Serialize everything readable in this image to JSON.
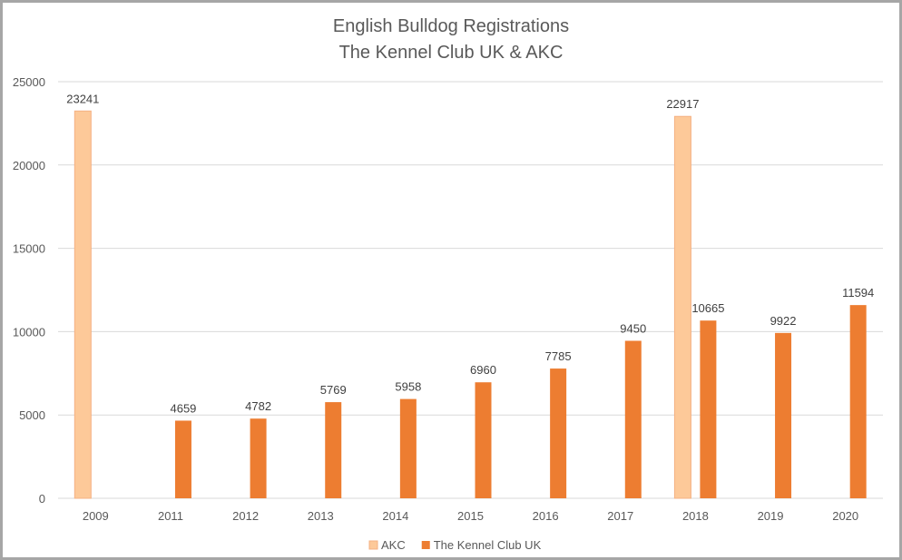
{
  "chart_data": {
    "type": "bar",
    "title": "English Bulldog Registrations",
    "subtitle": "The Kennel Club UK & AKC",
    "categories": [
      "2009",
      "2011",
      "2012",
      "2013",
      "2014",
      "2015",
      "2016",
      "2017",
      "2018",
      "2019",
      "2020"
    ],
    "series": [
      {
        "name": "AKC",
        "color": "#fdc999",
        "values": [
          23241,
          null,
          null,
          null,
          null,
          null,
          null,
          null,
          22917,
          null,
          null
        ]
      },
      {
        "name": "The Kennel Club UK",
        "color": "#ed7d31",
        "values": [
          null,
          4659,
          4782,
          5769,
          5958,
          6960,
          7785,
          9450,
          10665,
          9922,
          11594
        ]
      }
    ],
    "ylim": [
      0,
      25000
    ],
    "yticks": [
      0,
      5000,
      10000,
      15000,
      20000,
      25000
    ],
    "grid": true,
    "legend": "bottom",
    "data_labels": true
  }
}
